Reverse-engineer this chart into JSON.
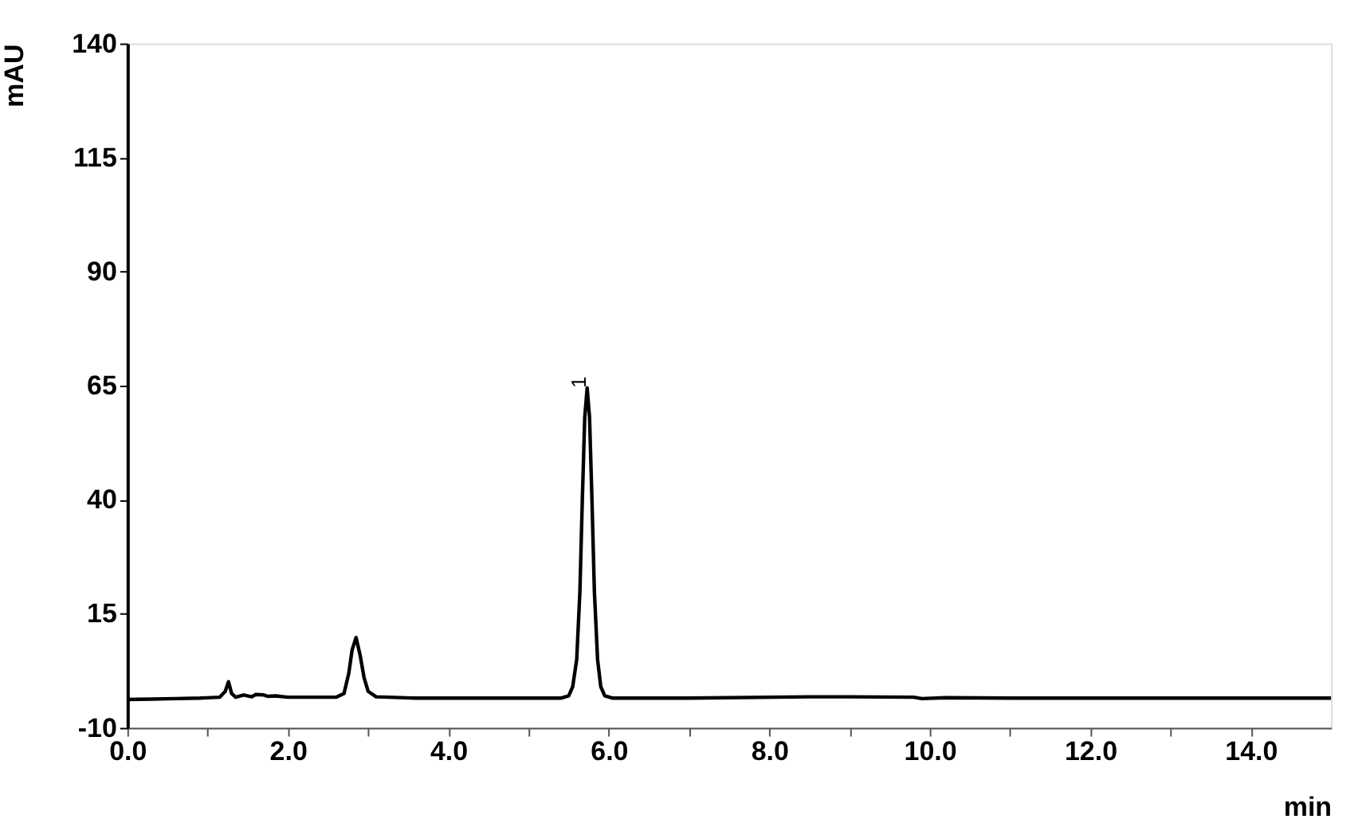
{
  "chart_data": {
    "type": "line",
    "xlabel": "min",
    "ylabel": "mAU",
    "series": [
      {
        "color": "#000000",
        "x": [
          0.0,
          0.3,
          0.6,
          0.9,
          1.15,
          1.22,
          1.26,
          1.3,
          1.35,
          1.45,
          1.55,
          1.6,
          1.7,
          1.75,
          1.85,
          2.0,
          2.3,
          2.6,
          2.7,
          2.76,
          2.8,
          2.85,
          2.9,
          2.95,
          3.0,
          3.1,
          3.6,
          4.5,
          5.4,
          5.5,
          5.55,
          5.6,
          5.64,
          5.67,
          5.7,
          5.73,
          5.76,
          5.79,
          5.82,
          5.86,
          5.9,
          5.95,
          6.05,
          7.0,
          8.5,
          9.0,
          9.8,
          9.9,
          10.2,
          11.0,
          13.0,
          15.0
        ],
        "values": [
          -3.8,
          -3.7,
          -3.6,
          -3.5,
          -3.3,
          -2,
          0.1,
          -2.5,
          -3.3,
          -2.8,
          -3.2,
          -2.7,
          -2.8,
          -3.1,
          -3.0,
          -3.3,
          -3.3,
          -3.3,
          -2.5,
          2,
          7,
          9.8,
          6,
          1,
          -2,
          -3.2,
          -3.5,
          -3.5,
          -3.5,
          -3.0,
          -1,
          5,
          20,
          40,
          58,
          64.5,
          58,
          40,
          20,
          5,
          -1,
          -3.0,
          -3.5,
          -3.5,
          -3.2,
          -3.2,
          -3.3,
          -3.6,
          -3.4,
          -3.5,
          -3.5,
          -3.5
        ]
      }
    ],
    "xlim": [
      0,
      15
    ],
    "xticks": [
      {
        "value": 0,
        "label": "0.0"
      },
      {
        "value": 1,
        "label": null
      },
      {
        "value": 2,
        "label": "2.0"
      },
      {
        "value": 3,
        "label": null
      },
      {
        "value": 4,
        "label": "4.0"
      },
      {
        "value": 5,
        "label": null
      },
      {
        "value": 6,
        "label": "6.0"
      },
      {
        "value": 7,
        "label": null
      },
      {
        "value": 8,
        "label": "8.0"
      },
      {
        "value": 9,
        "label": null
      },
      {
        "value": 10,
        "label": "10.0"
      },
      {
        "value": 11,
        "label": null
      },
      {
        "value": 12,
        "label": "12.0"
      },
      {
        "value": 13,
        "label": null
      },
      {
        "value": 14,
        "label": "14.0"
      }
    ],
    "ylim": [
      -10,
      140
    ],
    "yticks": [
      -10,
      15,
      40,
      65,
      90,
      115,
      140
    ],
    "annotations": [
      {
        "text": "1",
        "x": 5.73,
        "y": 64.5
      }
    ],
    "grid": false,
    "marker": "none",
    "line_style": "solid"
  }
}
